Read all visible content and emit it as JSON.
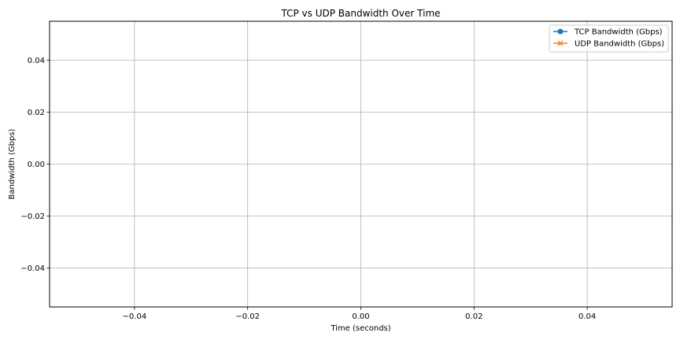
{
  "chart_data": {
    "type": "line",
    "title": "TCP vs UDP Bandwidth Over Time",
    "xlabel": "Time (seconds)",
    "ylabel": "Bandwidth (Gbps)",
    "xlim": [
      -0.055,
      0.055
    ],
    "ylim": [
      -0.055,
      0.055
    ],
    "xticks": [
      -0.04,
      -0.02,
      0.0,
      0.02,
      0.04
    ],
    "xtick_labels": [
      "−0.04",
      "−0.02",
      "0.00",
      "0.02",
      "0.04"
    ],
    "yticks": [
      0.04,
      0.02,
      0.0,
      -0.02,
      -0.04
    ],
    "ytick_labels": [
      "0.04",
      "0.02",
      "0.00",
      "−0.02",
      "−0.04"
    ],
    "grid": true,
    "legend_position": "top-right",
    "series": [
      {
        "name": "TCP Bandwidth (Gbps)",
        "color": "#1f77b4",
        "marker": "circle",
        "x": [],
        "values": []
      },
      {
        "name": "UDP Bandwidth (Gbps)",
        "color": "#ff7f0e",
        "marker": "x",
        "x": [],
        "values": []
      }
    ]
  }
}
